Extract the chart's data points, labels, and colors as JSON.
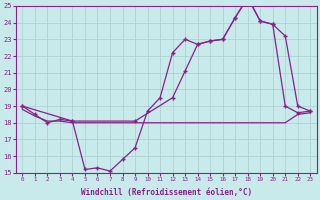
{
  "background_color": "#c8eaea",
  "grid_color": "#aacccc",
  "line_color": "#882288",
  "xlabel": "Windchill (Refroidissement éolien,°C)",
  "xlim": [
    -0.5,
    23.5
  ],
  "ylim": [
    15,
    25
  ],
  "yticks": [
    15,
    16,
    17,
    18,
    19,
    20,
    21,
    22,
    23,
    24,
    25
  ],
  "xticks": [
    0,
    1,
    2,
    3,
    4,
    5,
    6,
    7,
    8,
    9,
    10,
    11,
    12,
    13,
    14,
    15,
    16,
    17,
    18,
    19,
    20,
    21,
    22,
    23
  ],
  "line1_x": [
    0,
    1,
    2,
    3,
    4,
    5,
    6,
    7,
    8,
    9,
    10,
    11,
    12,
    13,
    14,
    15,
    16,
    17,
    18,
    19,
    20,
    21,
    22,
    23
  ],
  "line1_y": [
    19.0,
    18.5,
    18.0,
    18.2,
    18.1,
    15.2,
    15.3,
    15.1,
    15.8,
    16.5,
    18.7,
    19.5,
    22.2,
    23.0,
    22.7,
    22.9,
    23.0,
    24.3,
    25.5,
    24.1,
    23.9,
    19.0,
    18.6,
    18.7
  ],
  "line2_x": [
    0,
    1,
    2,
    3,
    4,
    5,
    6,
    7,
    8,
    9,
    10,
    11,
    12,
    13,
    14,
    15,
    16,
    17,
    18,
    19,
    20,
    21,
    22,
    23
  ],
  "line2_y": [
    18.8,
    18.4,
    18.1,
    18.1,
    18.0,
    18.0,
    18.0,
    18.0,
    18.0,
    18.0,
    18.0,
    18.0,
    18.0,
    18.0,
    18.0,
    18.0,
    18.0,
    18.0,
    18.0,
    18.0,
    18.0,
    18.0,
    18.5,
    18.6
  ],
  "line3_x": [
    0,
    4,
    9,
    12,
    13,
    14,
    15,
    16,
    17,
    18,
    19,
    20,
    21,
    22,
    23
  ],
  "line3_y": [
    19.0,
    18.1,
    18.1,
    19.5,
    21.1,
    22.7,
    22.9,
    23.0,
    24.3,
    25.5,
    24.1,
    23.9,
    23.2,
    19.0,
    18.7
  ]
}
